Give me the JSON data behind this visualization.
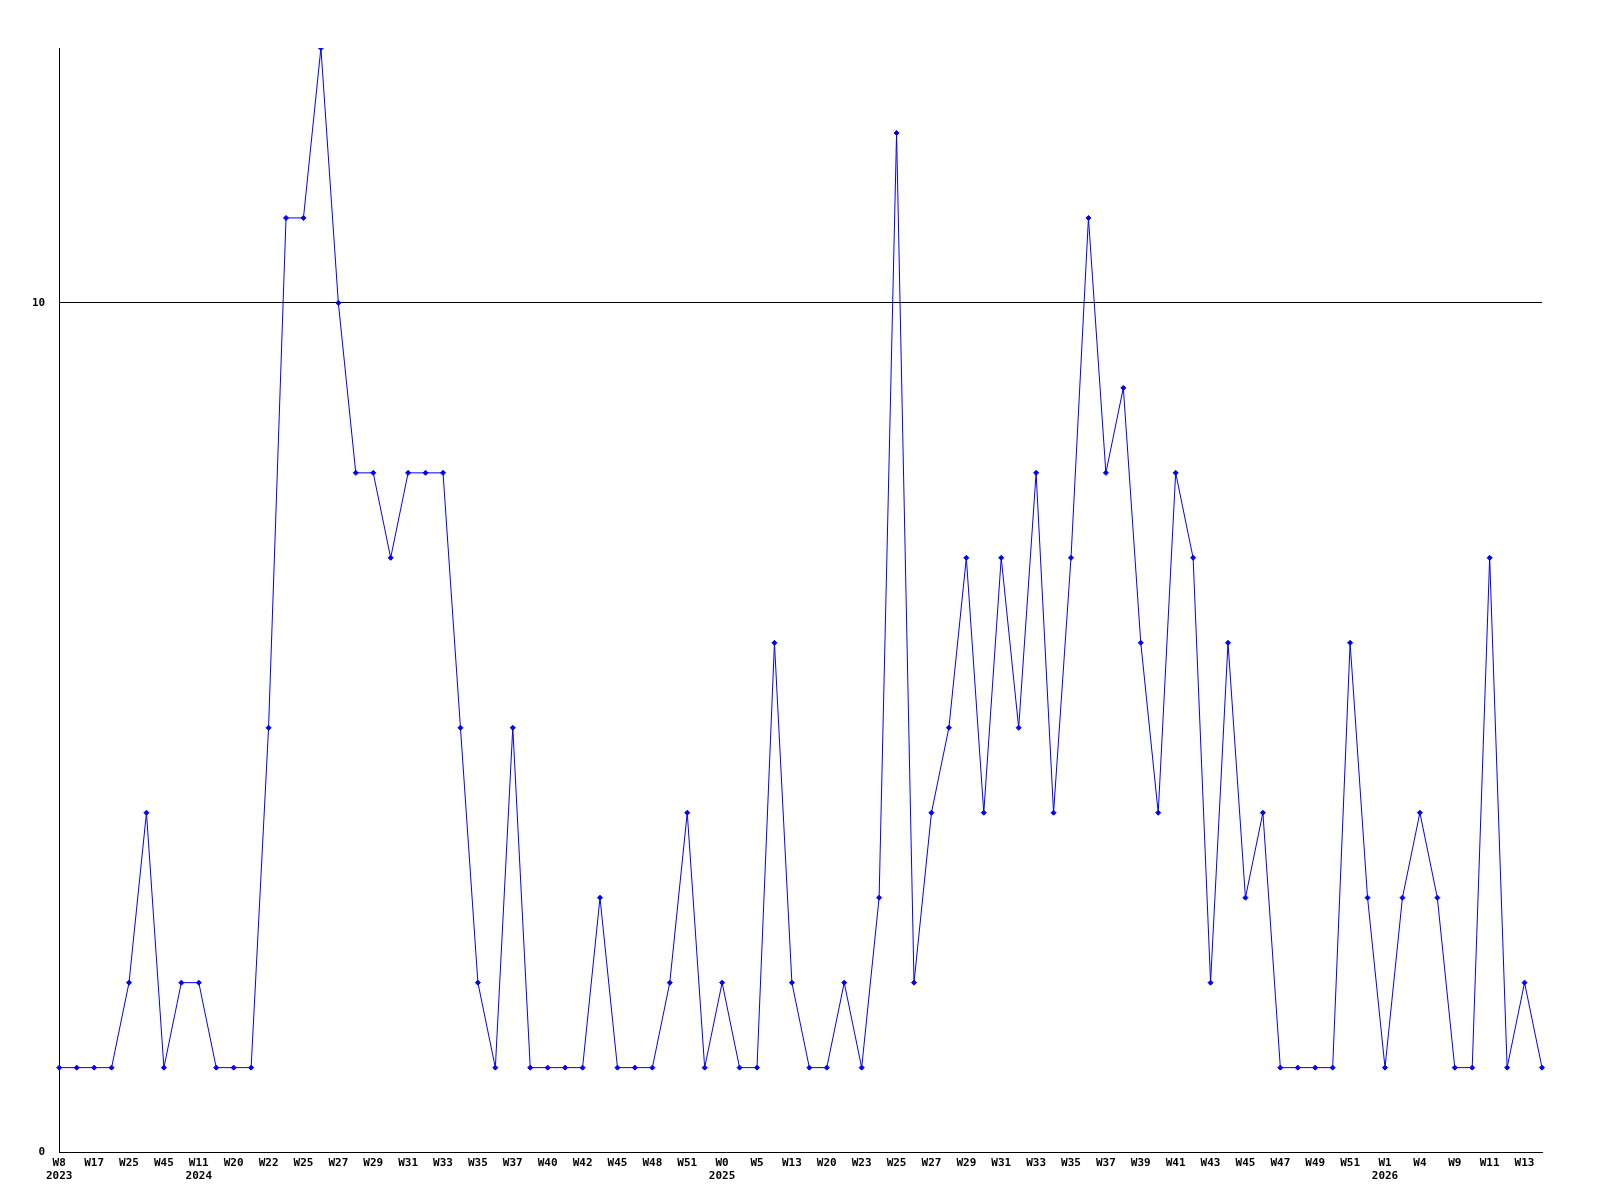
{
  "chart_data": {
    "type": "line",
    "categories": [
      "W8\n2023",
      null,
      "W17",
      null,
      "W25",
      null,
      "W45",
      null,
      "W11\n2024",
      null,
      "W20",
      null,
      "W22",
      null,
      "W25",
      null,
      "W27",
      null,
      "W29",
      null,
      "W31",
      null,
      "W33",
      null,
      "W35",
      null,
      "W37",
      null,
      "W40",
      null,
      "W42",
      null,
      "W45",
      null,
      "W48",
      null,
      "W51",
      null,
      "W0\n2025",
      null,
      "W5",
      null,
      "W13",
      null,
      "W20",
      null,
      "W23",
      null,
      "W25",
      null,
      "W27",
      null,
      "W29",
      null,
      "W31",
      null,
      "W33",
      null,
      "W35",
      null,
      "W37",
      null,
      "W39",
      null,
      "W41",
      null,
      "W43",
      null,
      "W45",
      null,
      "W47",
      null,
      "W49",
      null,
      "W51",
      null,
      "W1\n2026",
      null,
      "W4",
      null,
      "W9",
      null,
      "W11",
      null,
      "W13",
      null
    ],
    "series": [
      {
        "color": "#0000ff",
        "values": [
          1,
          1,
          1,
          1,
          2,
          4,
          1,
          2,
          2,
          1,
          1,
          1,
          5,
          11,
          11,
          13,
          10,
          8,
          8,
          7,
          8,
          8,
          8,
          5,
          2,
          1,
          5,
          1,
          1,
          1,
          1,
          3,
          1,
          1,
          1,
          2,
          4,
          1,
          2,
          1,
          1,
          6,
          2,
          1,
          1,
          2,
          1,
          3,
          12,
          2,
          4,
          5,
          7,
          4,
          7,
          5,
          8,
          4,
          7,
          11,
          8,
          9,
          6,
          4,
          8,
          7,
          2,
          6,
          3,
          4,
          1,
          1,
          1,
          1,
          6,
          3,
          1,
          3,
          4,
          3,
          1,
          1,
          7,
          1,
          2,
          1
        ]
      }
    ],
    "ylim": [
      0,
      13
    ],
    "yticks": [
      0,
      10
    ],
    "grid": "y",
    "legend": false,
    "marker": "diamond",
    "line_style": "solid"
  }
}
